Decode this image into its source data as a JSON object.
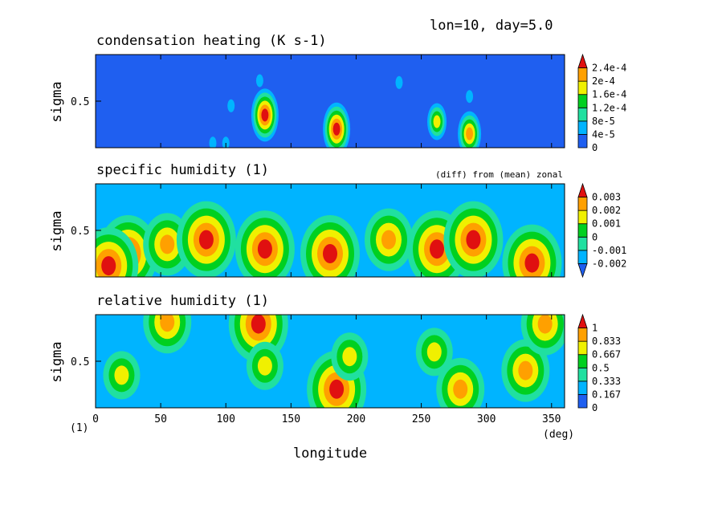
{
  "header": {
    "run_info": "lon=10, day=5.0"
  },
  "chart_data": [
    {
      "type": "heatmap",
      "title": "condensation heating (K s-1)",
      "subtitle": "",
      "ylabel": "sigma",
      "yticks": [
        "0.5"
      ],
      "colorbar": {
        "labels": [
          "0",
          "4e-5",
          "8e-5",
          "1.2e-4",
          "1.6e-4",
          "2e-4",
          "2.4e-4"
        ],
        "colors": [
          "#1f5ff0",
          "#00b4ff",
          "#20e0a0",
          "#00d020",
          "#f0f000",
          "#ffa000",
          "#e01010"
        ],
        "extend": "max",
        "range": [
          0,
          0.00024
        ]
      },
      "background": "#1f5ff0",
      "features": [
        {
          "lon": 130,
          "sigma": 0.35,
          "level": 6
        },
        {
          "lon": 185,
          "sigma": 0.2,
          "level": 6
        },
        {
          "lon": 262,
          "sigma": 0.28,
          "level": 4
        },
        {
          "lon": 287,
          "sigma": 0.15,
          "level": 5
        },
        {
          "lon": 104,
          "sigma": 0.45,
          "level": 1
        },
        {
          "lon": 126,
          "sigma": 0.72,
          "level": 1
        },
        {
          "lon": 233,
          "sigma": 0.7,
          "level": 1
        },
        {
          "lon": 287,
          "sigma": 0.55,
          "level": 1
        },
        {
          "lon": 90,
          "sigma": 0.05,
          "level": 1
        },
        {
          "lon": 100,
          "sigma": 0.05,
          "level": 1
        }
      ]
    },
    {
      "type": "heatmap",
      "title": "specific humidity (1)",
      "subtitle": "(diff) from (mean) zonal",
      "ylabel": "sigma",
      "yticks": [
        "0.5"
      ],
      "colorbar": {
        "labels": [
          "-0.002",
          "-0.001",
          "0",
          "0.001",
          "0.002",
          "0.003"
        ],
        "colors": [
          "#1f5ff0",
          "#00b4ff",
          "#20e0a0",
          "#00d020",
          "#f0f000",
          "#ffa000",
          "#e01010"
        ],
        "extend": "both",
        "range": [
          -0.003,
          0.004
        ]
      },
      "background": "#00b4ff",
      "features": [
        {
          "lon": 25,
          "sigma": 0.25,
          "level": 6
        },
        {
          "lon": 55,
          "sigma": 0.35,
          "level": 5
        },
        {
          "lon": 85,
          "sigma": 0.4,
          "level": 6
        },
        {
          "lon": 130,
          "sigma": 0.3,
          "level": 6
        },
        {
          "lon": 180,
          "sigma": 0.25,
          "level": 6
        },
        {
          "lon": 225,
          "sigma": 0.4,
          "level": 5
        },
        {
          "lon": 262,
          "sigma": 0.3,
          "level": 6
        },
        {
          "lon": 290,
          "sigma": 0.4,
          "level": 6
        },
        {
          "lon": 335,
          "sigma": 0.15,
          "level": 6
        },
        {
          "lon": 10,
          "sigma": 0.12,
          "level": 6
        }
      ]
    },
    {
      "type": "heatmap",
      "title": "relative humidity (1)",
      "subtitle": "",
      "ylabel": "sigma",
      "yticks": [
        "0.5"
      ],
      "colorbar": {
        "labels": [
          "0",
          "0.167",
          "0.333",
          "0.5",
          "0.667",
          "0.833",
          "1"
        ],
        "colors": [
          "#1f5ff0",
          "#00b4ff",
          "#20e0a0",
          "#00d020",
          "#f0f000",
          "#ffa000",
          "#e01010"
        ],
        "extend": "max",
        "range": [
          0,
          1
        ]
      },
      "background": "#00b4ff",
      "features": [
        {
          "lon": 20,
          "sigma": 0.35,
          "level": 4
        },
        {
          "lon": 55,
          "sigma": 0.92,
          "level": 5
        },
        {
          "lon": 125,
          "sigma": 0.9,
          "level": 6
        },
        {
          "lon": 130,
          "sigma": 0.45,
          "level": 4
        },
        {
          "lon": 185,
          "sigma": 0.2,
          "level": 6
        },
        {
          "lon": 195,
          "sigma": 0.55,
          "level": 4
        },
        {
          "lon": 260,
          "sigma": 0.6,
          "level": 4
        },
        {
          "lon": 280,
          "sigma": 0.2,
          "level": 5
        },
        {
          "lon": 330,
          "sigma": 0.4,
          "level": 5
        },
        {
          "lon": 345,
          "sigma": 0.9,
          "level": 5
        }
      ]
    }
  ],
  "xaxis": {
    "label": "longitude",
    "ticks": [
      "0",
      "50",
      "100",
      "150",
      "200",
      "250",
      "300",
      "350"
    ],
    "tick_values": [
      0,
      50,
      100,
      150,
      200,
      250,
      300,
      350
    ],
    "range": [
      0,
      360
    ],
    "unit": "(deg)",
    "left_note": "(1)"
  }
}
